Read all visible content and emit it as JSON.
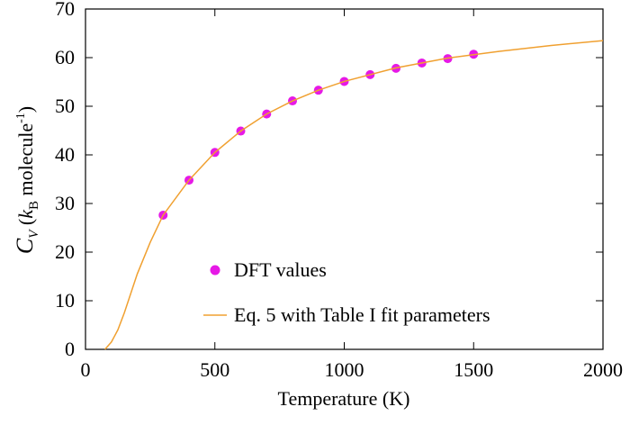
{
  "chart_data": {
    "type": "combo",
    "x_label": "Temperature (K)",
    "y_label": [
      "C",
      "V",
      " (",
      "k",
      "B",
      " molecule",
      "-1",
      ")"
    ],
    "xlim": [
      0,
      2000
    ],
    "ylim": [
      0,
      70
    ],
    "xticks": [
      0,
      500,
      1000,
      1500,
      2000
    ],
    "yticks": [
      0,
      10,
      20,
      30,
      40,
      50,
      60,
      70
    ],
    "legend": "bottom-right",
    "series": [
      {
        "name": "DFT values",
        "type": "scatter",
        "color": "#e619e6",
        "x": [
          300,
          400,
          500,
          600,
          700,
          800,
          900,
          1000,
          1100,
          1200,
          1300,
          1400,
          1500
        ],
        "values": [
          27.6,
          34.8,
          40.5,
          44.9,
          48.4,
          51.1,
          53.3,
          55.1,
          56.5,
          57.8,
          58.9,
          59.8,
          60.7
        ]
      },
      {
        "name": "Eq. 5 with Table I fit parameters",
        "type": "line",
        "color": "#f0a030",
        "x": [
          75,
          100,
          125,
          150,
          200,
          250,
          300,
          400,
          500,
          600,
          700,
          800,
          900,
          1000,
          1200,
          1400,
          1600,
          1800,
          2000
        ],
        "values": [
          0,
          1.5,
          4,
          7.5,
          15.5,
          22,
          27.6,
          34.8,
          40.5,
          44.9,
          48.4,
          51.1,
          53.3,
          55.1,
          57.9,
          59.9,
          61.3,
          62.5,
          63.5
        ]
      }
    ]
  }
}
